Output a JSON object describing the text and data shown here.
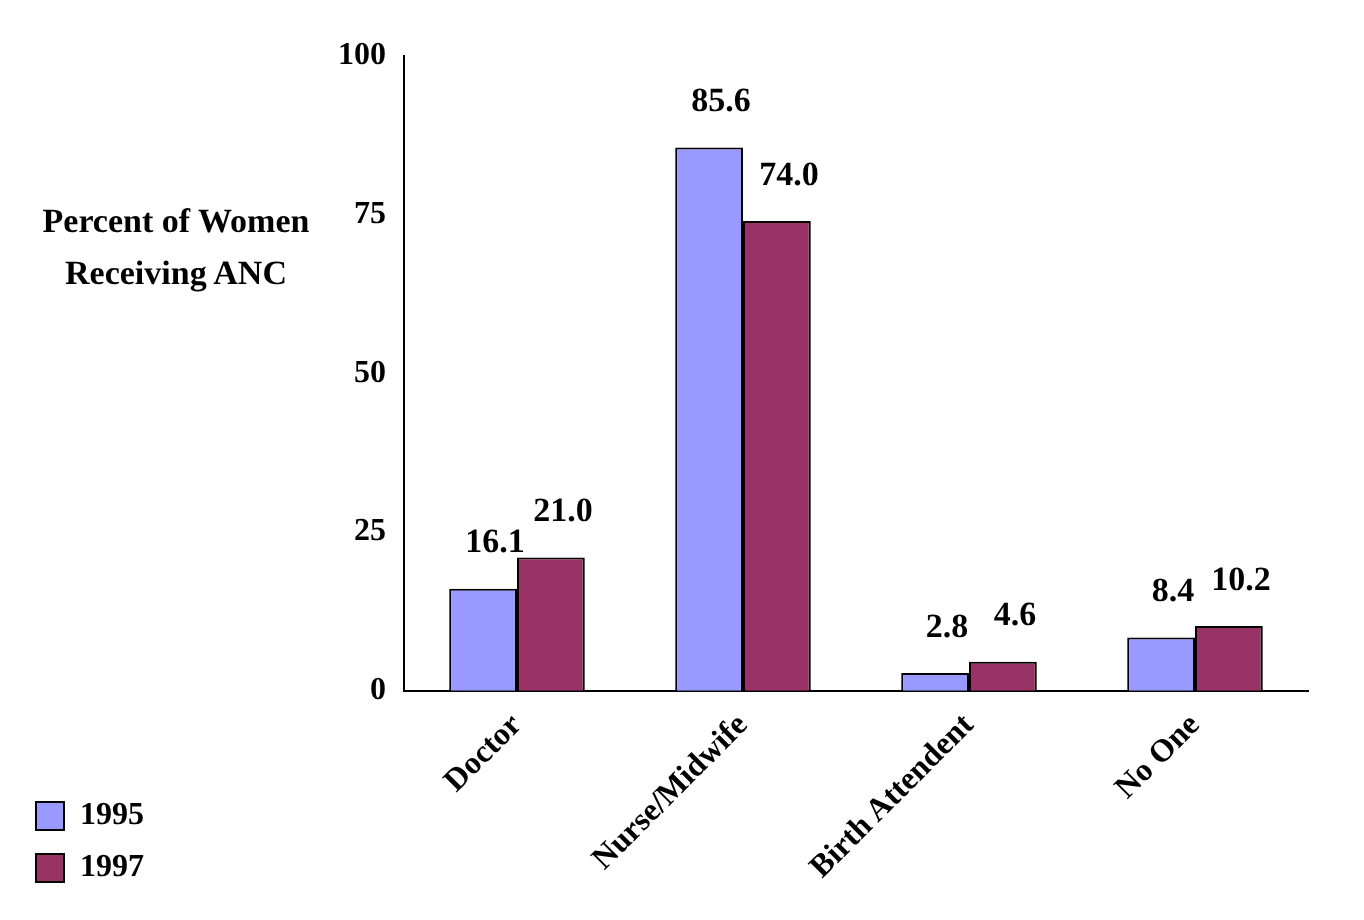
{
  "chart_data": {
    "type": "bar",
    "ylabel": "Percent of Women Receiving ANC",
    "categories": [
      "Doctor",
      "Nurse/Midwife",
      "Birth Attendent",
      "No One"
    ],
    "series": [
      {
        "name": "1995",
        "color": "#9999ff",
        "values": [
          16.1,
          85.6,
          2.8,
          8.4
        ]
      },
      {
        "name": "1997",
        "color": "#993366",
        "values": [
          21.0,
          74.0,
          4.6,
          10.2
        ]
      }
    ],
    "value_labels": [
      [
        "16.1",
        "85.6",
        "2.8",
        "8.4"
      ],
      [
        "21.0",
        "74.0",
        "4.6",
        "10.2"
      ]
    ],
    "ylim": [
      0,
      100
    ],
    "yticks": [
      0,
      25,
      50,
      75,
      100
    ],
    "grid": false,
    "legend": "bottom left"
  }
}
